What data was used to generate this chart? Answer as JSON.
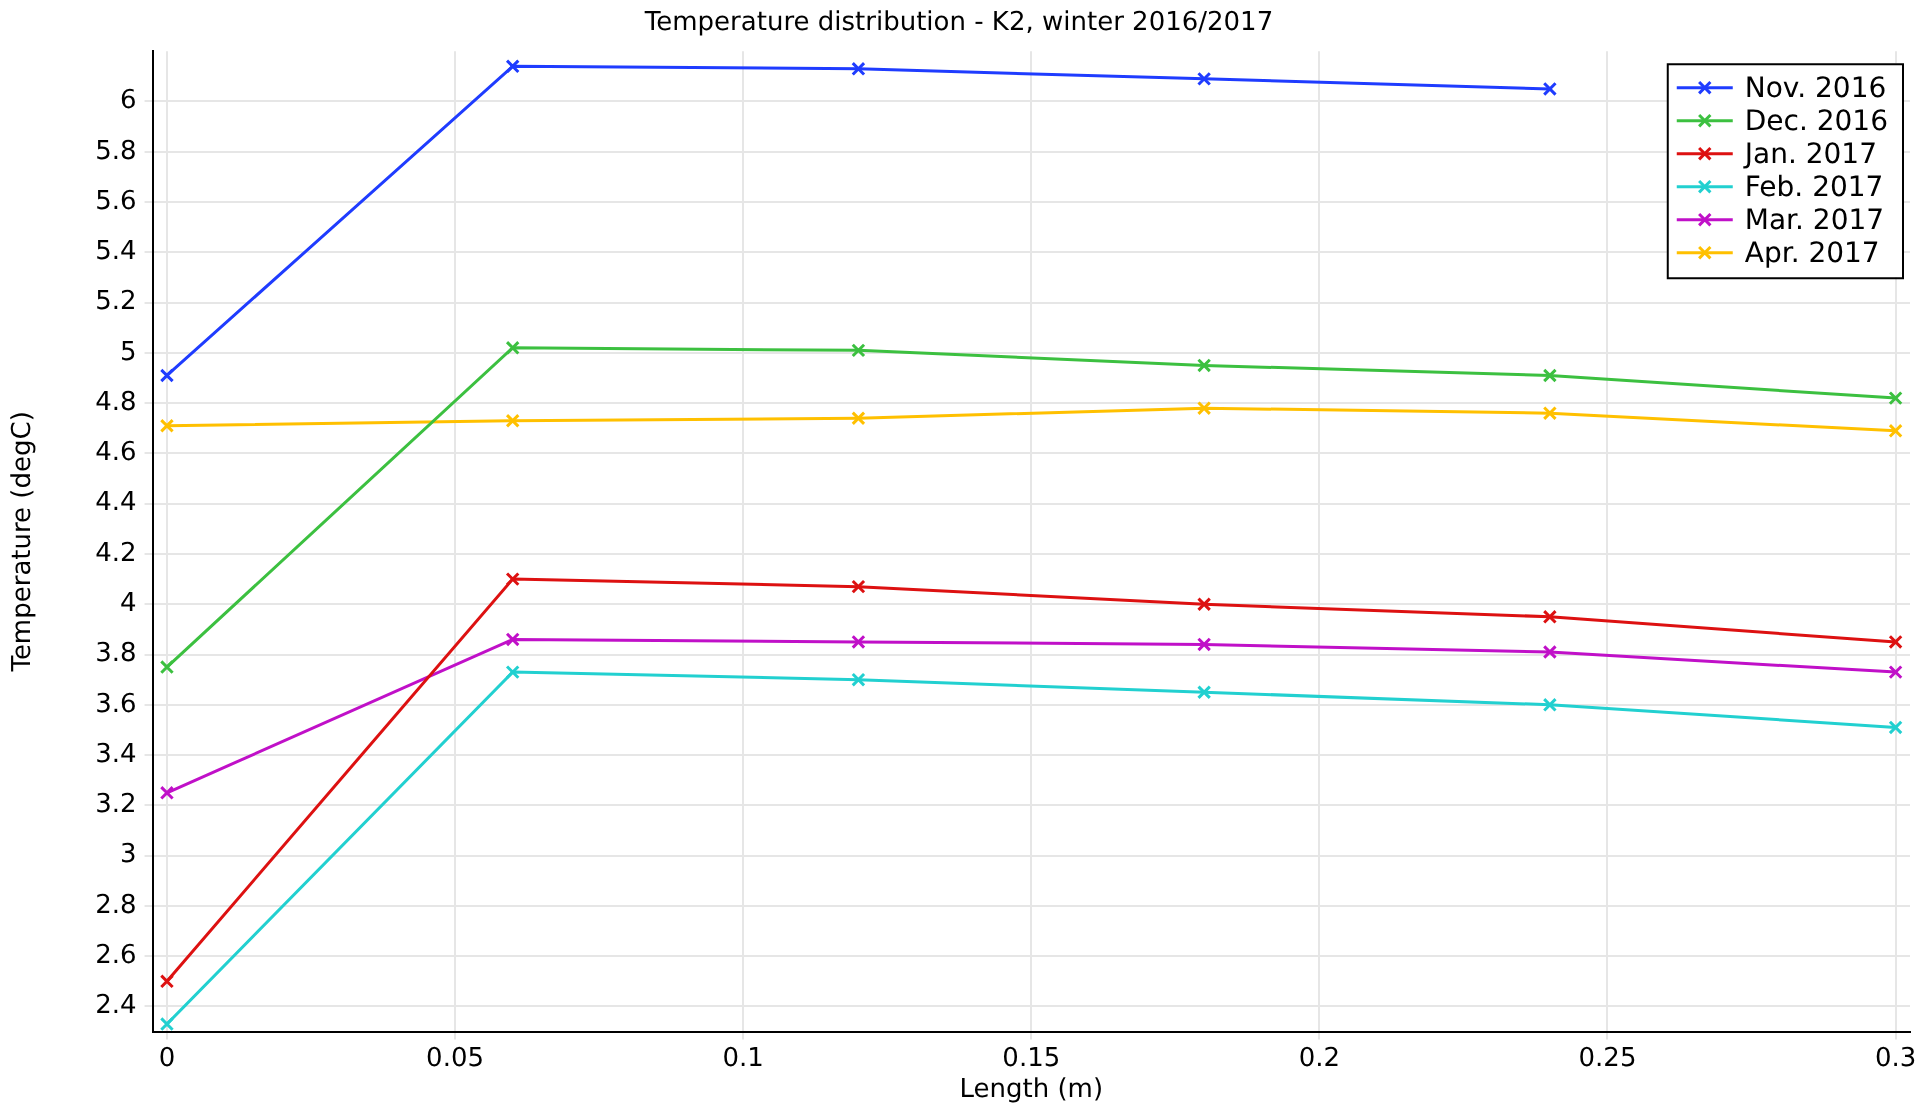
{
  "chart_data": {
    "type": "line",
    "title": "Temperature distribution - K2, winter 2016/2017",
    "xlabel": "Length (m)",
    "ylabel": "Temperature (degC)",
    "x": [
      0,
      0.06,
      0.12,
      0.18,
      0.24,
      0.3
    ],
    "series": [
      {
        "name": "Nov. 2016",
        "color": "#1f3cff",
        "values": [
          4.91,
          6.14,
          6.13,
          6.09,
          6.05,
          null
        ]
      },
      {
        "name": "Dec. 2016",
        "color": "#3cc040",
        "values": [
          3.75,
          5.02,
          5.01,
          4.95,
          4.91,
          4.82
        ]
      },
      {
        "name": "Jan. 2017",
        "color": "#dd1111",
        "values": [
          2.5,
          4.1,
          4.07,
          4.0,
          3.95,
          3.85
        ]
      },
      {
        "name": "Feb. 2017",
        "color": "#22d0d0",
        "values": [
          2.33,
          3.73,
          3.7,
          3.65,
          3.6,
          3.51
        ]
      },
      {
        "name": "Mar. 2017",
        "color": "#c010c8",
        "values": [
          3.25,
          3.86,
          3.85,
          3.84,
          3.81,
          3.73
        ]
      },
      {
        "name": "Apr. 2017",
        "color": "#ffc000",
        "values": [
          4.71,
          4.73,
          4.74,
          4.78,
          4.76,
          4.69
        ]
      }
    ],
    "xlim": [
      -0.0025,
      0.3025
    ],
    "xticks": [
      0,
      0.05,
      0.1,
      0.15,
      0.2,
      0.25,
      0.3
    ],
    "ylim": [
      2.3,
      6.2
    ],
    "yticks": [
      2.4,
      2.6,
      2.8,
      3,
      3.2,
      3.4,
      3.6,
      3.8,
      4,
      4.2,
      4.4,
      4.6,
      4.8,
      5,
      5.2,
      5.4,
      5.6,
      5.8,
      6
    ],
    "grid": true,
    "legend": "top right",
    "marker": "cross",
    "line_style": "solid"
  }
}
